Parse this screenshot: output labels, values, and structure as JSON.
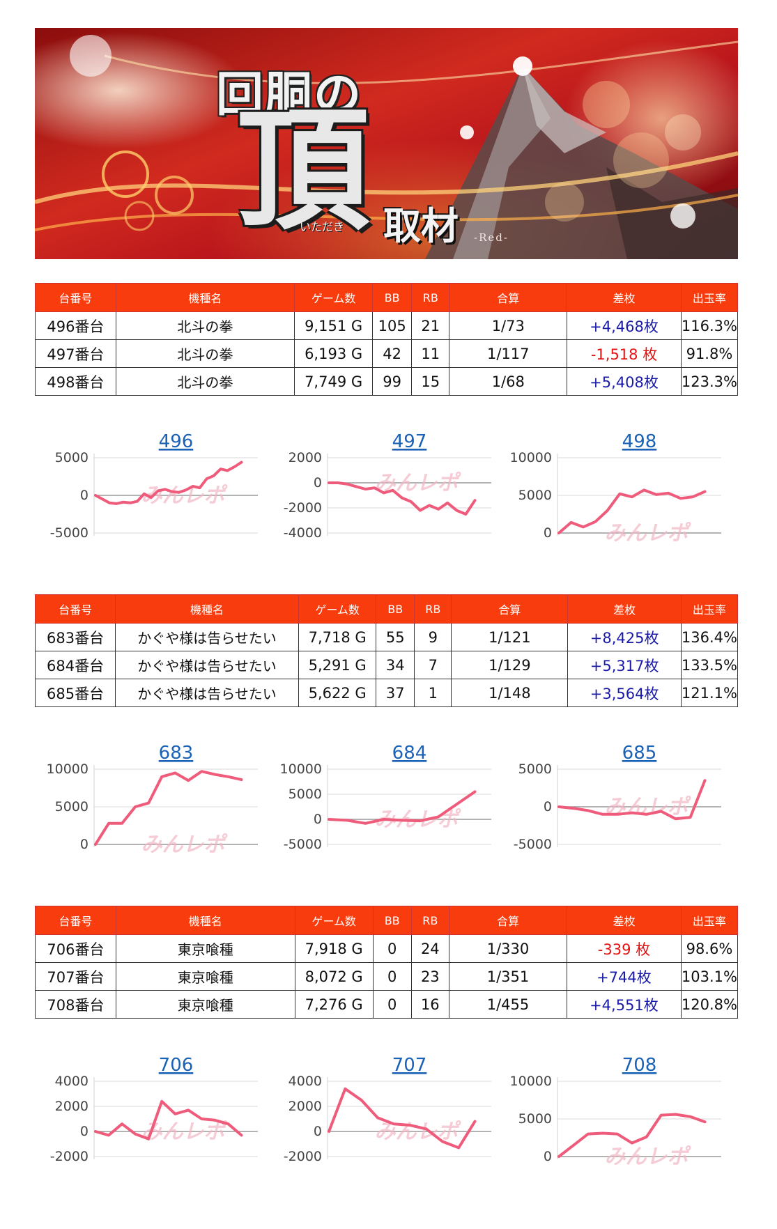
{
  "banner": {
    "title": "回胴の",
    "big": "頂",
    "ruby": "いただき",
    "sub": "取材",
    "tag": "-Red-"
  },
  "headers": [
    "台番号",
    "機種名",
    "ゲーム数",
    "BB",
    "RB",
    "合算",
    "差枚",
    "出玉率"
  ],
  "groups": [
    {
      "rows": [
        {
          "dai": "496番台",
          "name": "北斗の拳",
          "games": "9,151 G",
          "bb": "105",
          "rb": "21",
          "gassan": "1/73",
          "samai": "+4,468枚",
          "sign": "pos",
          "rate": "116.3%"
        },
        {
          "dai": "497番台",
          "name": "北斗の拳",
          "games": "6,193 G",
          "bb": "42",
          "rb": "11",
          "gassan": "1/117",
          "samai": "-1,518 枚",
          "sign": "neg",
          "rate": "91.8%"
        },
        {
          "dai": "498番台",
          "name": "北斗の拳",
          "games": "7,749 G",
          "bb": "99",
          "rb": "15",
          "gassan": "1/68",
          "samai": "+5,408枚",
          "sign": "pos",
          "rate": "123.3%"
        }
      ]
    },
    {
      "rows": [
        {
          "dai": "683番台",
          "name": "かぐや様は告らせたい",
          "games": "7,718 G",
          "bb": "55",
          "rb": "9",
          "gassan": "1/121",
          "samai": "+8,425枚",
          "sign": "pos",
          "rate": "136.4%"
        },
        {
          "dai": "684番台",
          "name": "かぐや様は告らせたい",
          "games": "5,291 G",
          "bb": "34",
          "rb": "7",
          "gassan": "1/129",
          "samai": "+5,317枚",
          "sign": "pos",
          "rate": "133.5%"
        },
        {
          "dai": "685番台",
          "name": "かぐや様は告らせたい",
          "games": "5,622 G",
          "bb": "37",
          "rb": "1",
          "gassan": "1/148",
          "samai": "+3,564枚",
          "sign": "pos",
          "rate": "121.1%"
        }
      ]
    },
    {
      "rows": [
        {
          "dai": "706番台",
          "name": "東京喰種",
          "games": "7,918 G",
          "bb": "0",
          "rb": "24",
          "gassan": "1/330",
          "samai": "-339 枚",
          "sign": "neg",
          "rate": "98.6%"
        },
        {
          "dai": "707番台",
          "name": "東京喰種",
          "games": "8,072 G",
          "bb": "0",
          "rb": "23",
          "gassan": "1/351",
          "samai": "+744枚",
          "sign": "pos",
          "rate": "103.1%"
        },
        {
          "dai": "708番台",
          "name": "東京喰種",
          "games": "7,276 G",
          "bb": "0",
          "rb": "16",
          "gassan": "1/455",
          "samai": "+4,551枚",
          "sign": "pos",
          "rate": "120.8%"
        }
      ]
    }
  ],
  "watermark": "みんレポ",
  "colors": {
    "header": "#f83c0d",
    "line": "#ef5b7a",
    "positive": "#1a1aa8",
    "negative": "#e81010",
    "link": "#1a62b6"
  },
  "chart_data": [
    {
      "type": "line",
      "title": "496",
      "ylim": [
        -5000,
        5000
      ],
      "yticks": [
        "5000",
        "0",
        "-5000"
      ],
      "y": [
        0,
        -500,
        -1000,
        -1100,
        -900,
        -1000,
        -800,
        200,
        -300,
        600,
        800,
        500,
        400,
        700,
        1200,
        1000,
        2200,
        2600,
        3500,
        3300,
        3800,
        4400
      ]
    },
    {
      "type": "line",
      "title": "497",
      "ylim": [
        -4000,
        2000
      ],
      "yticks": [
        "2000",
        "0",
        "-2000",
        "-4000"
      ],
      "y": [
        0,
        0,
        -100,
        -300,
        -500,
        -400,
        -800,
        -600,
        -1200,
        -1500,
        -2200,
        -1800,
        -2100,
        -1600,
        -2200,
        -2500,
        -1400
      ]
    },
    {
      "type": "line",
      "title": "498",
      "ylim": [
        0,
        10000
      ],
      "yticks": [
        "10000",
        "5000",
        "0"
      ],
      "y": [
        0,
        1400,
        800,
        1500,
        3000,
        5200,
        4800,
        5700,
        5100,
        5300,
        4600,
        4800,
        5500
      ]
    },
    {
      "type": "line",
      "title": "683",
      "ylim": [
        0,
        10000
      ],
      "yticks": [
        "10000",
        "5000",
        "0"
      ],
      "y": [
        0,
        2800,
        2800,
        5000,
        5500,
        9000,
        9500,
        8500,
        9700,
        9300,
        9000,
        8600
      ]
    },
    {
      "type": "line",
      "title": "684",
      "ylim": [
        -5000,
        10000
      ],
      "yticks": [
        "10000",
        "5000",
        "0",
        "-5000"
      ],
      "y": [
        0,
        -200,
        -800,
        0,
        -200,
        -300,
        500,
        3000,
        5500
      ]
    },
    {
      "type": "line",
      "title": "685",
      "ylim": [
        -5000,
        5000
      ],
      "yticks": [
        "5000",
        "0",
        "-5000"
      ],
      "y": [
        0,
        -200,
        -500,
        -1000,
        -1000,
        -800,
        -1000,
        -600,
        -1600,
        -1400,
        3500
      ]
    },
    {
      "type": "line",
      "title": "706",
      "ylim": [
        -2000,
        4000
      ],
      "yticks": [
        "4000",
        "2000",
        "0",
        "-2000"
      ],
      "y": [
        0,
        -300,
        600,
        -200,
        -600,
        2400,
        1400,
        1700,
        1000,
        900,
        600,
        -300
      ]
    },
    {
      "type": "line",
      "title": "707",
      "ylim": [
        -2000,
        4000
      ],
      "yticks": [
        "4000",
        "2000",
        "0",
        "-2000"
      ],
      "y": [
        0,
        3400,
        2500,
        1100,
        600,
        500,
        200,
        -800,
        -1300,
        800
      ]
    },
    {
      "type": "line",
      "title": "708",
      "ylim": [
        0,
        10000
      ],
      "yticks": [
        "10000",
        "5000",
        "0"
      ],
      "y": [
        0,
        1500,
        3000,
        3100,
        3000,
        1800,
        2600,
        5500,
        5600,
        5300,
        4600
      ]
    }
  ]
}
